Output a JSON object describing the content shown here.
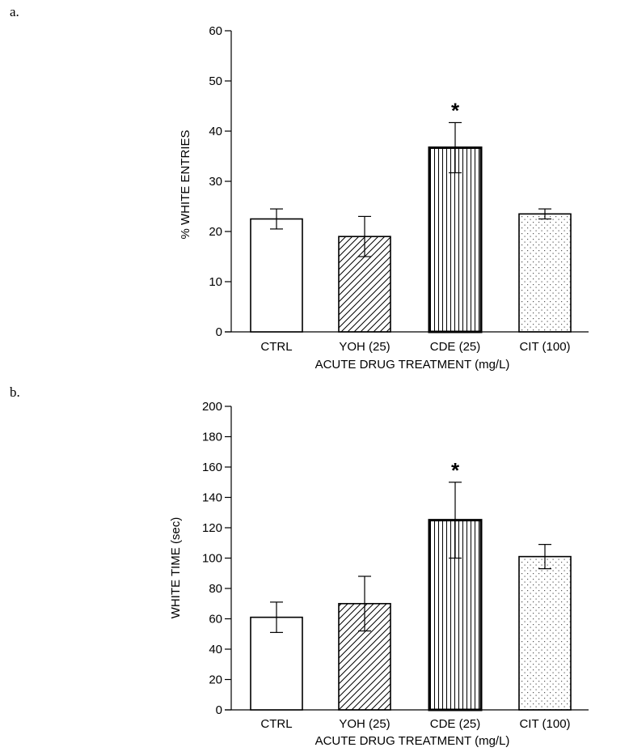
{
  "panel_labels": [
    "a.",
    "b."
  ],
  "chart_data": [
    {
      "type": "bar",
      "categories": [
        "CTRL",
        "YOH (25)",
        "CDE (25)",
        "CIT (100)"
      ],
      "values": [
        22.5,
        19,
        36.7,
        23.5
      ],
      "errors": [
        2,
        4,
        5,
        1
      ],
      "significance": [
        "",
        "",
        "*",
        ""
      ],
      "patterns": [
        "none",
        "diagonal",
        "vertical",
        "dots"
      ],
      "xlabel": "ACUTE DRUG TREATMENT (mg/L)",
      "ylabel": "% WHITE ENTRIES",
      "ylim": [
        0,
        60
      ],
      "yticks": [
        0,
        10,
        20,
        30,
        40,
        50,
        60
      ],
      "grid": false
    },
    {
      "type": "bar",
      "categories": [
        "CTRL",
        "YOH (25)",
        "CDE (25)",
        "CIT (100)"
      ],
      "values": [
        61,
        70,
        125,
        101
      ],
      "errors": [
        10,
        18,
        25,
        8
      ],
      "significance": [
        "",
        "",
        "*",
        ""
      ],
      "patterns": [
        "none",
        "diagonal",
        "vertical",
        "dots"
      ],
      "xlabel": "ACUTE DRUG TREATMENT (mg/L)",
      "ylabel": "WHITE TIME (sec)",
      "ylim": [
        0,
        200
      ],
      "yticks": [
        0,
        20,
        40,
        60,
        80,
        100,
        120,
        140,
        160,
        180,
        200
      ],
      "grid": false
    }
  ]
}
